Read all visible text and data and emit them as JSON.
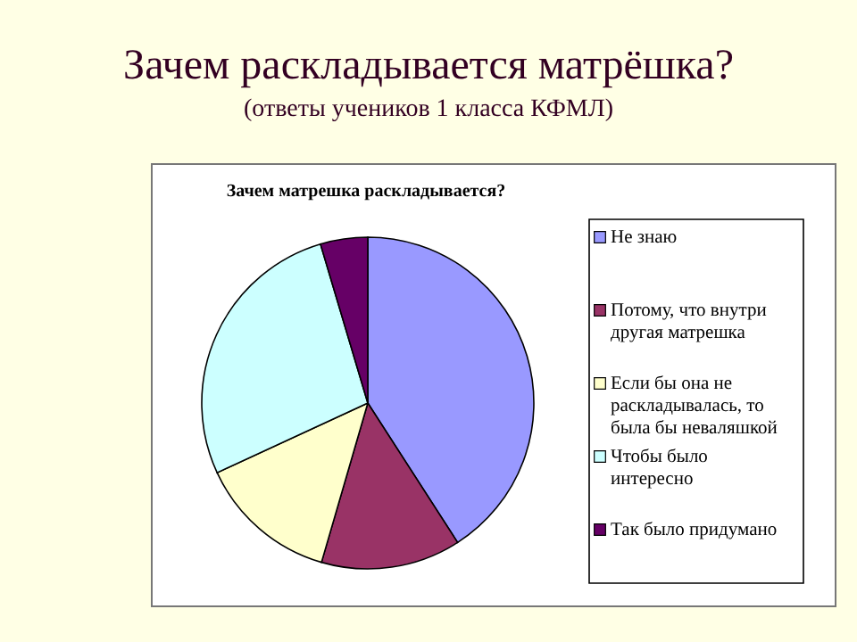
{
  "chart_data": {
    "type": "pie",
    "title": "Зачем раскладывается матрёшка?",
    "subtitle": "(ответы учеников 1 класса КФМЛ)",
    "annotations": [
      "Зачем матрешка раскладывается?"
    ],
    "categories": [
      "Не знаю",
      "Потому, что внутри другая матрешка",
      "Если бы она не раскладывалась, то была бы неваляшкой",
      "Чтобы было интересно",
      "Так было придумано"
    ],
    "values": [
      40.9,
      13.6,
      13.6,
      27.3,
      4.6
    ],
    "colors": [
      "#9999ff",
      "#993366",
      "#ffffcc",
      "#ccffff",
      "#660066"
    ],
    "legend": "right"
  }
}
